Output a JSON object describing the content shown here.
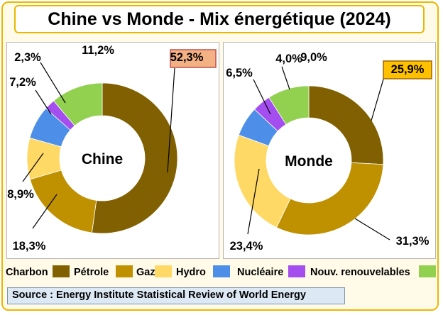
{
  "title": "Chine vs Monde - Mix énergétique (2024)",
  "source": "Source : Energy Institute Statistical Review of World Energy",
  "colors": {
    "Charbon": "#806000",
    "Pétrole": "#bf9000",
    "Gaz": "#ffd966",
    "Hydro": "#4d8fe8",
    "Nucléaire": "#a44ef0",
    "Nouv. renouvelables": "#92d050"
  },
  "chart_data": [
    {
      "type": "pie",
      "title": "Chine",
      "categories": [
        "Charbon",
        "Pétrole",
        "Gaz",
        "Hydro",
        "Nucléaire",
        "Nouv. renouvelables"
      ],
      "values": [
        52.3,
        18.3,
        8.9,
        7.2,
        2.3,
        11.2
      ],
      "labels": [
        "52,3%",
        "18,3%",
        "8,9%",
        "7,2%",
        "2,3%",
        "11,2%"
      ],
      "highlight": "52,3%"
    },
    {
      "type": "pie",
      "title": "Monde",
      "categories": [
        "Charbon",
        "Pétrole",
        "Gaz",
        "Hydro",
        "Nucléaire",
        "Nouv. renouvelables"
      ],
      "values": [
        25.9,
        31.3,
        23.4,
        6.5,
        4.0,
        9.0
      ],
      "labels": [
        "25,9%",
        "31,3%",
        "23,4%",
        "6,5%",
        "4,0%",
        "9,0%"
      ],
      "highlight": "25,9%"
    }
  ],
  "legend": [
    "Charbon",
    "Pétrole",
    "Gaz",
    "Hydro",
    "Nucléaire",
    "Nouv. renouvelables"
  ]
}
